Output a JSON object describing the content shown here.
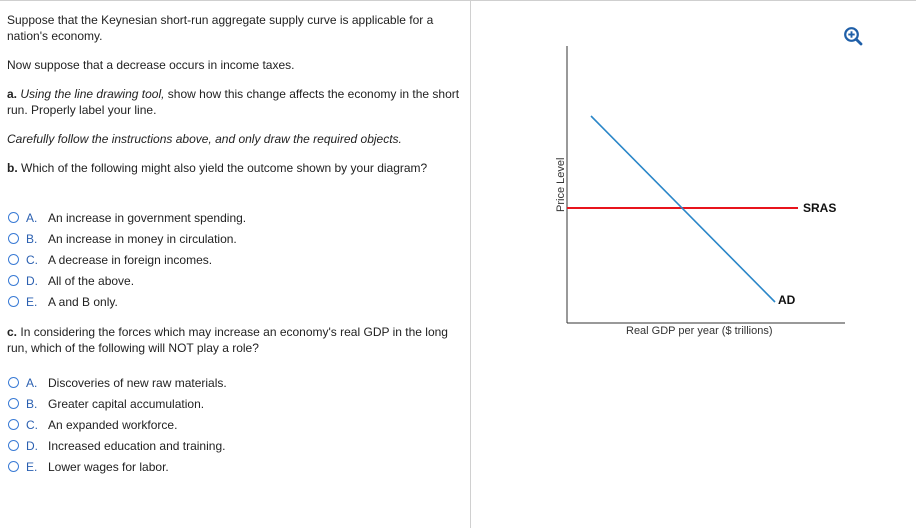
{
  "question": {
    "intro": "Suppose that the Keynesian short-run aggregate supply curve is applicable for a nation's economy.",
    "scenario": "Now suppose that a decrease occurs in income taxes.",
    "part_a": {
      "lead": "a.",
      "instruction_italic": "Using the line drawing tool,",
      "instruction_rest": "show how this change affects the economy in the short run. Properly label your line."
    },
    "careful_note": "Carefully follow the instructions above, and only draw the required objects.",
    "part_b": {
      "lead": "b.",
      "text": "Which of the following might also yield the outcome shown by your diagram?",
      "options": [
        {
          "letter": "A.",
          "text": "An increase in government spending."
        },
        {
          "letter": "B.",
          "text": "An increase in money in circulation."
        },
        {
          "letter": "C.",
          "text": "A decrease in foreign incomes."
        },
        {
          "letter": "D.",
          "text": "All of the above."
        },
        {
          "letter": "E.",
          "text": "A and B only."
        }
      ]
    },
    "part_c": {
      "lead": "c.",
      "text": "In considering the forces which may increase an economy's real GDP in the long run, which of the following will NOT play a role?",
      "options": [
        {
          "letter": "A.",
          "text": "Discoveries of new raw materials."
        },
        {
          "letter": "B.",
          "text": "Greater capital accumulation."
        },
        {
          "letter": "C.",
          "text": "An expanded workforce."
        },
        {
          "letter": "D.",
          "text": "Increased education and training."
        },
        {
          "letter": "E.",
          "text": "Lower wages for labor."
        }
      ]
    }
  },
  "graph": {
    "y_label": "Price Level",
    "x_label": "Real GDP per year ($ trillions)",
    "curves": [
      {
        "label": "SRAS",
        "color": "#e8141c",
        "shape": "horizontal"
      },
      {
        "label": "AD",
        "color": "#2a86c8",
        "shape": "downward-sloping"
      }
    ]
  },
  "icons": {
    "zoom": "zoom-in-icon"
  },
  "colors": {
    "radio_border": "#3a7bd5",
    "choice_letter": "#2a5fb0",
    "divider": "#d0d0d0"
  }
}
